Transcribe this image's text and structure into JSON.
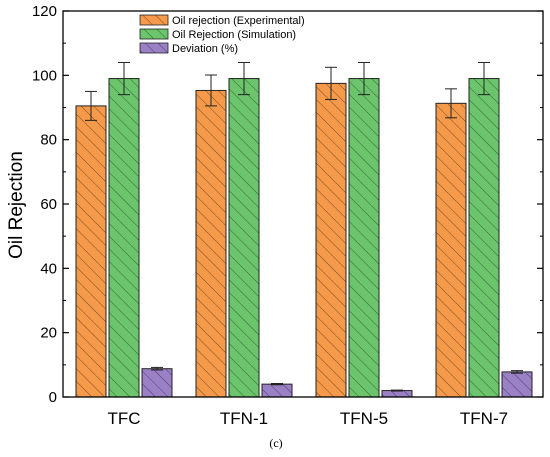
{
  "chart_data": {
    "type": "bar",
    "categories": [
      "TFC",
      "TFN-1",
      "TFN-5",
      "TFN-7"
    ],
    "series": [
      {
        "name": "Oil rejection (Experimental)",
        "values": [
          90.5,
          95.3,
          97.5,
          91.3
        ],
        "errors": [
          4.5,
          4.8,
          5.0,
          4.5
        ],
        "color": "#f59a4a",
        "hatch": "#7a4a20"
      },
      {
        "name": "Oil Rejection (Simulation)",
        "values": [
          99.0,
          99.0,
          99.0,
          99.0
        ],
        "errors": [
          5.0,
          5.0,
          5.0,
          5.0
        ],
        "color": "#6cc46c",
        "hatch": "#2f6b2f"
      },
      {
        "name": "Deviation (%)",
        "values": [
          8.8,
          4.0,
          2.0,
          7.8
        ],
        "errors": [
          0.4,
          0.2,
          0.15,
          0.4
        ],
        "color": "#9a80c4",
        "hatch": "#4d3a73"
      }
    ],
    "title": "",
    "xlabel": "",
    "ylabel": "Oil Rejection",
    "ylim": [
      0,
      120
    ],
    "yticks": [
      0,
      20,
      40,
      60,
      80,
      100,
      120
    ],
    "legend_position": "top-left",
    "grid": false
  },
  "caption": "(c)"
}
